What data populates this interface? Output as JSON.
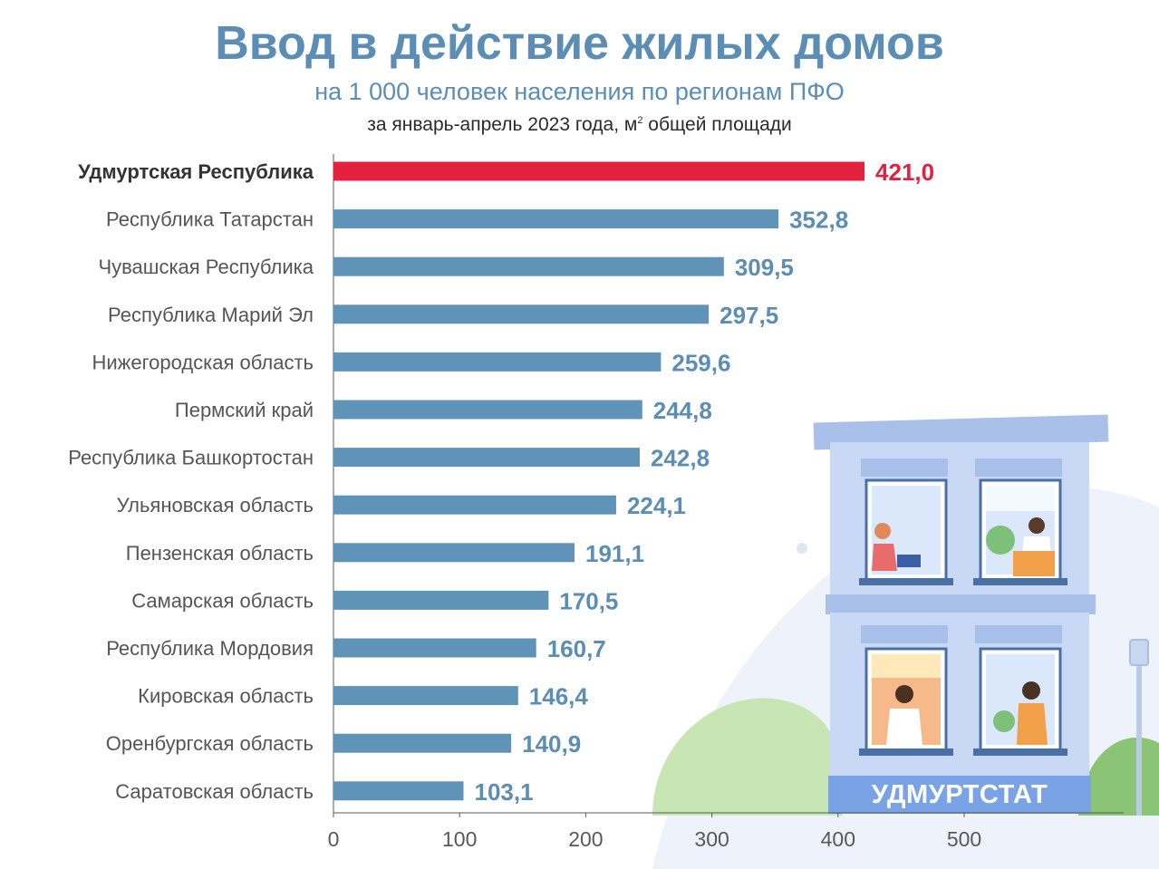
{
  "header": {
    "title": "Ввод в действие жилых домов",
    "subtitle": "на 1 000 человек населения по регионам ПФО",
    "subtitle2_pre": "за январь-апрель 2023 года, м",
    "subtitle2_sup": "2",
    "subtitle2_post": " общей площади"
  },
  "brand": "УДМУРТСТАТ",
  "colors": {
    "bar": "#5f93b8",
    "highlight": "#e3213f",
    "label": "#5b8db5",
    "axis": "#595959"
  },
  "chart_data": {
    "type": "bar",
    "orientation": "horizontal",
    "categories": [
      "Удмуртская Республика",
      "Республика Татарстан",
      "Чувашская Республика",
      "Республика Марий Эл",
      "Нижегородская область",
      "Пермский край",
      "Республика Башкортостан",
      "Ульяновская область",
      "Пензенская область",
      "Самарская область",
      "Республика Мордовия",
      "Кировская область",
      "Оренбургская область",
      "Саратовская область"
    ],
    "values": [
      421.0,
      352.8,
      309.5,
      297.5,
      259.6,
      244.8,
      242.8,
      224.1,
      191.1,
      170.5,
      160.7,
      146.4,
      140.9,
      103.1
    ],
    "value_labels": [
      "421,0",
      "352,8",
      "309,5",
      "297,5",
      "259,6",
      "244,8",
      "242,8",
      "224,1",
      "191,1",
      "170,5",
      "160,7",
      "146,4",
      "140,9",
      "103,1"
    ],
    "highlight_index": 0,
    "xlim": [
      0,
      500
    ],
    "xticks": [
      0,
      100,
      200,
      300,
      400,
      500
    ],
    "grid": false,
    "legend": "none"
  }
}
